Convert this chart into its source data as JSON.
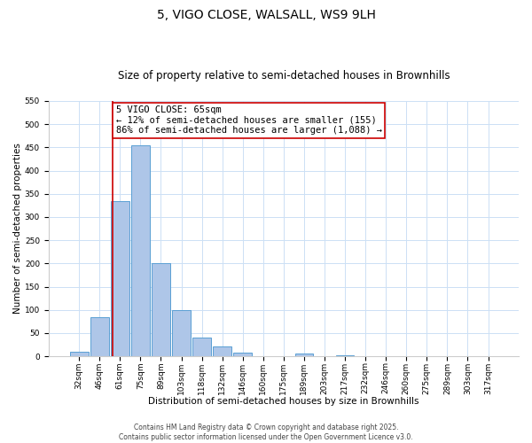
{
  "title": "5, VIGO CLOSE, WALSALL, WS9 9LH",
  "subtitle": "Size of property relative to semi-detached houses in Brownhills",
  "xlabel": "Distribution of semi-detached houses by size in Brownhills",
  "ylabel": "Number of semi-detached properties",
  "bin_labels": [
    "32sqm",
    "46sqm",
    "61sqm",
    "75sqm",
    "89sqm",
    "103sqm",
    "118sqm",
    "132sqm",
    "146sqm",
    "160sqm",
    "175sqm",
    "189sqm",
    "203sqm",
    "217sqm",
    "232sqm",
    "246sqm",
    "260sqm",
    "275sqm",
    "289sqm",
    "303sqm",
    "317sqm"
  ],
  "bar_values": [
    10,
    85,
    335,
    455,
    200,
    100,
    40,
    22,
    8,
    0,
    0,
    5,
    0,
    3,
    0,
    0,
    0,
    0,
    0,
    0,
    0
  ],
  "bar_color": "#aec6e8",
  "bar_edge_color": "#5a9fd4",
  "vline_color": "#cc0000",
  "vline_xindex": 1.65,
  "annotation_title": "5 VIGO CLOSE: 65sqm",
  "annotation_line1": "← 12% of semi-detached houses are smaller (155)",
  "annotation_line2": "86% of semi-detached houses are larger (1,088) →",
  "annotation_box_color": "#ffffff",
  "annotation_edge_color": "#cc0000",
  "ylim": [
    0,
    550
  ],
  "yticks": [
    0,
    50,
    100,
    150,
    200,
    250,
    300,
    350,
    400,
    450,
    500,
    550
  ],
  "footer1": "Contains HM Land Registry data © Crown copyright and database right 2025.",
  "footer2": "Contains public sector information licensed under the Open Government Licence v3.0.",
  "bg_color": "#ffffff",
  "grid_color": "#cce0f5",
  "title_fontsize": 10,
  "subtitle_fontsize": 8.5,
  "axis_label_fontsize": 7.5,
  "tick_fontsize": 6.5,
  "annotation_fontsize": 7.5,
  "footer_fontsize": 5.5
}
